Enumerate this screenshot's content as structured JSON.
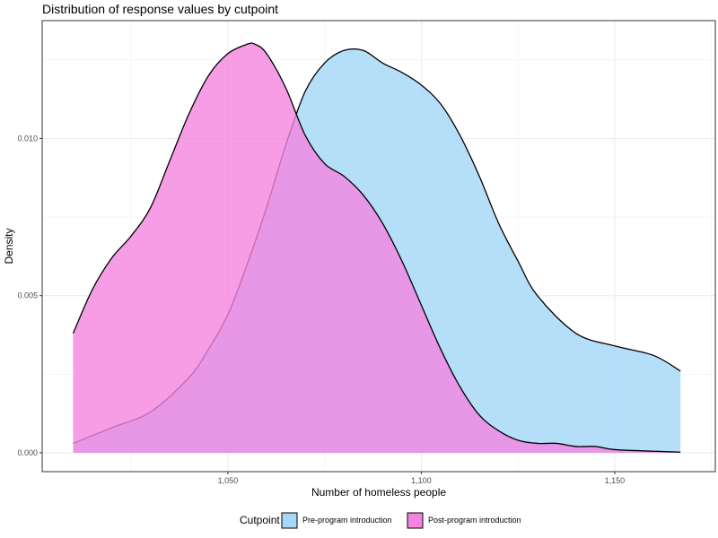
{
  "chart_data": {
    "type": "area",
    "title": "Distribution of response values by cutpoint",
    "xlabel": "Number of homeless people",
    "ylabel": "Density",
    "xlim": [
      1002,
      1176
    ],
    "ylim": [
      -0.0006,
      0.01375
    ],
    "x_ticks": [
      1050,
      1100,
      1150
    ],
    "x_tick_labels": [
      "1,050",
      "1,100",
      "1,150"
    ],
    "y_ticks": [
      0.0,
      0.005,
      0.01
    ],
    "y_tick_labels": [
      "0.000",
      "0.005",
      "0.010"
    ],
    "grid": true,
    "legend": {
      "title": "Cutpoint",
      "position": "bottom"
    },
    "series": [
      {
        "name": "Pre-program introduction",
        "color": "#a8d8f8",
        "x": [
          1010,
          1020,
          1030,
          1040,
          1045,
          1050,
          1055,
          1060,
          1065,
          1070,
          1075,
          1080,
          1085,
          1090,
          1095,
          1100,
          1105,
          1110,
          1115,
          1120,
          1125,
          1130,
          1140,
          1150,
          1160,
          1167
        ],
        "y": [
          0.0003,
          0.0008,
          0.0013,
          0.0024,
          0.0033,
          0.0044,
          0.006,
          0.0078,
          0.0098,
          0.0115,
          0.0124,
          0.0128,
          0.0128,
          0.0124,
          0.0121,
          0.0117,
          0.0111,
          0.0101,
          0.0088,
          0.0073,
          0.0061,
          0.005,
          0.0038,
          0.0034,
          0.0031,
          0.0026
        ]
      },
      {
        "name": "Post-program introduction",
        "color": "#f484e0",
        "x": [
          1010,
          1015,
          1020,
          1025,
          1030,
          1035,
          1040,
          1045,
          1050,
          1055,
          1057,
          1060,
          1065,
          1070,
          1075,
          1080,
          1085,
          1090,
          1095,
          1100,
          1105,
          1110,
          1115,
          1120,
          1125,
          1130,
          1135,
          1140,
          1145,
          1150,
          1160,
          1167
        ],
        "y": [
          0.0038,
          0.0052,
          0.0062,
          0.0069,
          0.0078,
          0.0093,
          0.0108,
          0.012,
          0.0127,
          0.013,
          0.013,
          0.0127,
          0.0116,
          0.0101,
          0.0092,
          0.0088,
          0.0082,
          0.0073,
          0.0061,
          0.0047,
          0.0033,
          0.0021,
          0.0012,
          0.0007,
          0.0004,
          0.0003,
          0.0003,
          0.0002,
          0.0002,
          0.0001,
          5e-05,
          2e-05
        ]
      }
    ]
  }
}
